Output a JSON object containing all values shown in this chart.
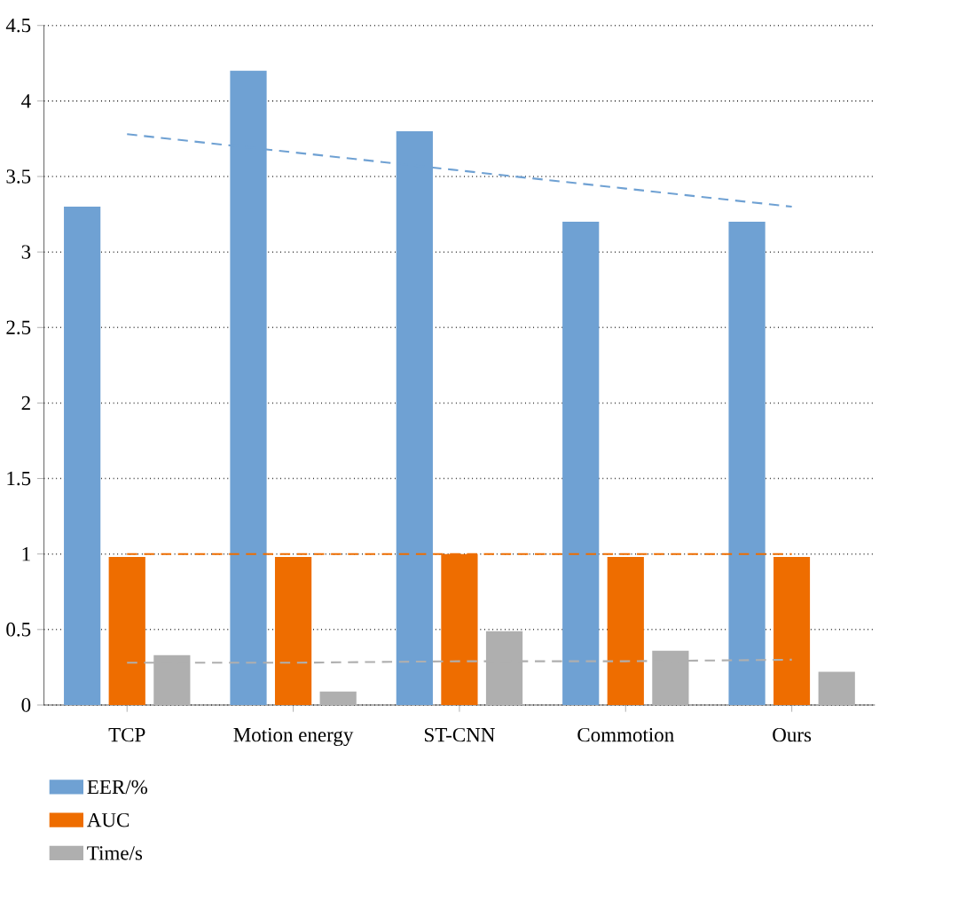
{
  "chart_data": {
    "type": "bar",
    "categories": [
      "TCP",
      "Motion energy",
      "ST-CNN",
      "Commotion",
      "Ours"
    ],
    "series": [
      {
        "name": "EER/%",
        "color": "#6fa1d3",
        "values": [
          3.3,
          4.2,
          3.8,
          3.2,
          3.2
        ]
      },
      {
        "name": "AUC",
        "color": "#ee6d00",
        "values": [
          0.98,
          0.98,
          1.0,
          0.98,
          0.98
        ]
      },
      {
        "name": "Time/s",
        "color": "#afafaf",
        "values": [
          0.33,
          0.09,
          0.49,
          0.36,
          0.22
        ]
      },
      {
        "type": "line",
        "color": "#6fa1d3",
        "line_style": "dashed",
        "marker": "none",
        "values": [
          3.78,
          3.66,
          3.54,
          3.42,
          3.3
        ]
      },
      {
        "type": "line",
        "color": "#ee6d00",
        "line_style": "dashed",
        "marker": "none",
        "values": [
          1.0,
          1.0,
          1.0,
          1.0,
          1.0
        ]
      },
      {
        "type": "line",
        "color": "#afafaf",
        "line_style": "dashed",
        "marker": "none",
        "values": [
          0.28,
          0.28,
          0.29,
          0.29,
          0.3
        ]
      }
    ],
    "ylim": [
      0,
      4.5
    ],
    "yticks": [
      0,
      0.5,
      1,
      1.5,
      2,
      2.5,
      3,
      3.5,
      4,
      4.5
    ],
    "grid": "y",
    "legend": "bottom"
  }
}
